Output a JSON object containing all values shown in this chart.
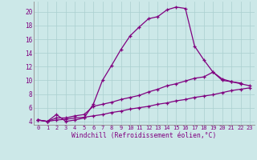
{
  "xlabel": "Windchill (Refroidissement éolien,°C)",
  "bg_color": "#cce8e8",
  "line_color": "#800080",
  "xlim": [
    -0.5,
    23.5
  ],
  "ylim": [
    3.5,
    21.5
  ],
  "xticks": [
    0,
    1,
    2,
    3,
    4,
    5,
    6,
    7,
    8,
    9,
    10,
    11,
    12,
    13,
    14,
    15,
    16,
    17,
    18,
    19,
    20,
    21,
    22,
    23
  ],
  "yticks": [
    4,
    6,
    8,
    10,
    12,
    14,
    16,
    18,
    20
  ],
  "line1_x": [
    0,
    1,
    2,
    3,
    4,
    5,
    6,
    7,
    8,
    9,
    10,
    11,
    12,
    13,
    14,
    15,
    16,
    17,
    18,
    19,
    20,
    21,
    22
  ],
  "line1_y": [
    4.2,
    4.0,
    5.0,
    4.0,
    4.2,
    4.5,
    6.5,
    10.0,
    12.2,
    14.5,
    16.5,
    17.8,
    19.0,
    19.3,
    20.3,
    20.7,
    20.5,
    15.0,
    13.0,
    11.2,
    10.0,
    9.8,
    9.6
  ],
  "line2_x": [
    0,
    1,
    2,
    3,
    4,
    5,
    6,
    7,
    8,
    9,
    10,
    11,
    12,
    13,
    14,
    15,
    16,
    17,
    18,
    19,
    20,
    21,
    22,
    23
  ],
  "line2_y": [
    4.2,
    4.0,
    4.5,
    4.5,
    4.8,
    5.0,
    6.2,
    6.5,
    6.8,
    7.2,
    7.5,
    7.8,
    8.3,
    8.7,
    9.2,
    9.5,
    9.9,
    10.3,
    10.5,
    11.2,
    10.2,
    9.8,
    9.5,
    9.2
  ],
  "line3_x": [
    0,
    1,
    2,
    3,
    4,
    5,
    6,
    7,
    8,
    9,
    10,
    11,
    12,
    13,
    14,
    15,
    16,
    17,
    18,
    19,
    20,
    21,
    22,
    23
  ],
  "line3_y": [
    4.2,
    4.0,
    4.2,
    4.3,
    4.5,
    4.6,
    4.8,
    5.0,
    5.3,
    5.5,
    5.8,
    6.0,
    6.2,
    6.5,
    6.7,
    7.0,
    7.2,
    7.5,
    7.7,
    7.9,
    8.2,
    8.5,
    8.7,
    8.9
  ],
  "grid_color": "#aacfcf",
  "marker": "+"
}
